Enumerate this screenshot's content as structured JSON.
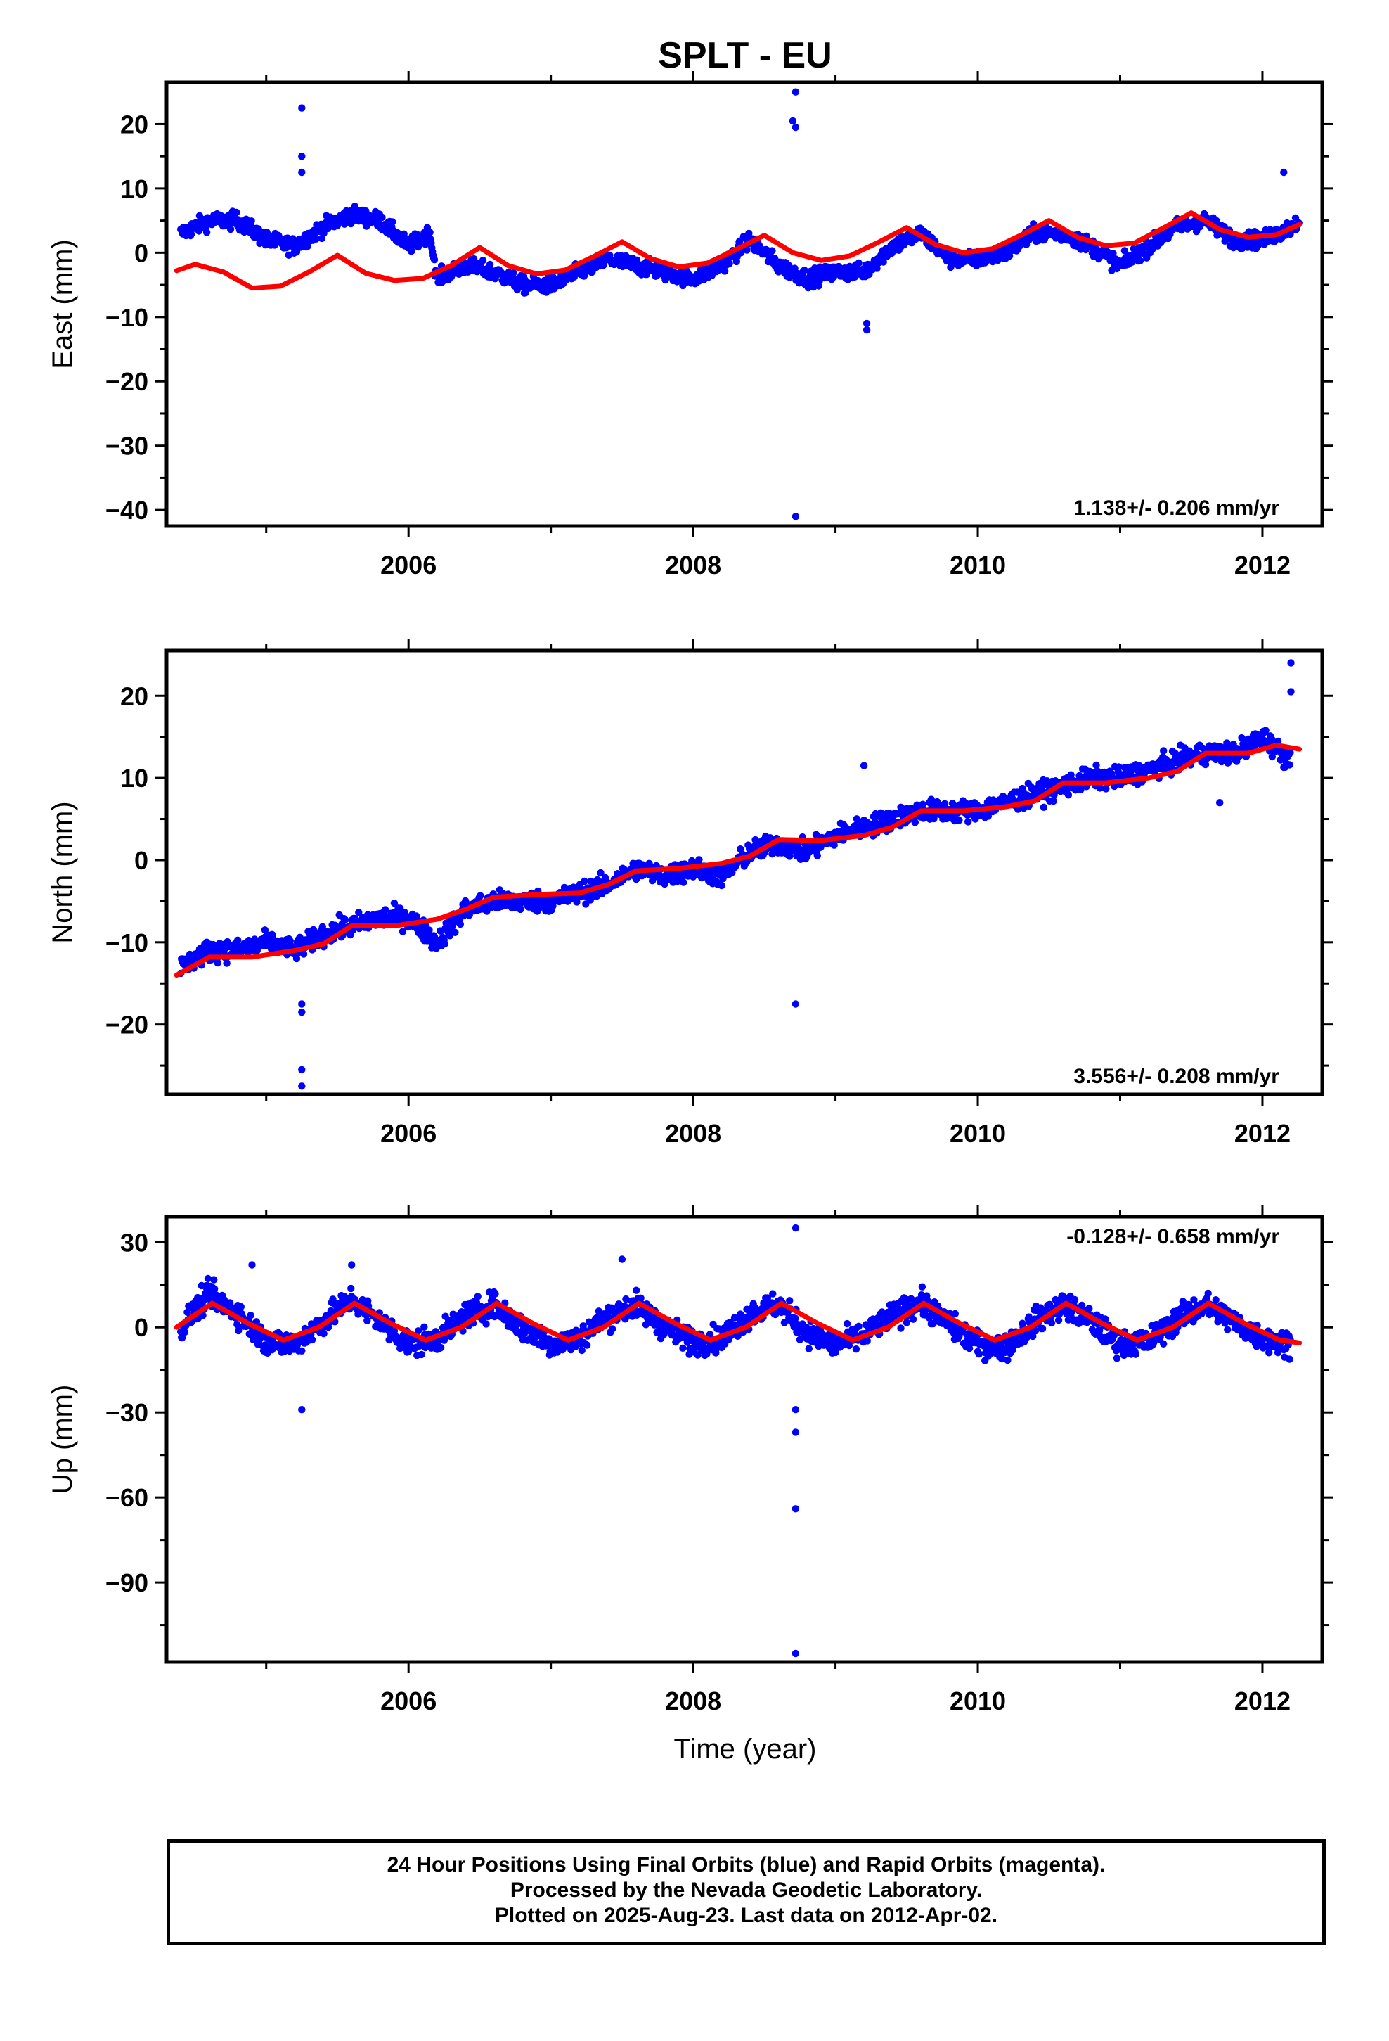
{
  "title": "SPLT - EU",
  "caption": [
    "24 Hour Positions Using Final Orbits (blue) and Rapid Orbits (magenta).",
    "Processed by the Nevada Geodetic Laboratory.",
    "Plotted on 2025-Aug-23. Last data on 2012-Apr-02."
  ],
  "colors": {
    "points": "#0000ff",
    "model": "#ff0000",
    "axes": "#000000"
  },
  "chart_data": [
    {
      "type": "scatter",
      "ylabel": "East (mm)",
      "xlabel": "",
      "rate_label": "1.138+/- 0.206 mm/yr",
      "xlim": [
        2004.3,
        2012.42
      ],
      "ylim": [
        -42.5,
        26.5
      ],
      "xticks": [
        2006,
        2008,
        2010,
        2012
      ],
      "yticks": [
        20,
        10,
        0,
        -10,
        -20,
        -30,
        -40
      ],
      "ytick_labels": [
        "20",
        "10",
        "0",
        "−10",
        "−20",
        "−30",
        "−40"
      ],
      "series": [
        {
          "kind": "points",
          "x": [
            2004.4,
            2004.6,
            2004.8,
            2005.0,
            2005.2,
            2005.4,
            2005.6,
            2005.8,
            2006.0,
            2006.15,
            2006.2,
            2006.4,
            2006.6,
            2006.8,
            2007.0,
            2007.2,
            2007.4,
            2007.6,
            2007.8,
            2008.0,
            2008.2,
            2008.4,
            2008.6,
            2008.8,
            2009.0,
            2009.2,
            2009.4,
            2009.6,
            2009.8,
            2010.0,
            2010.2,
            2010.4,
            2010.6,
            2010.8,
            2011.0,
            2011.2,
            2011.4,
            2011.6,
            2011.8,
            2012.0,
            2012.2,
            2012.26
          ],
          "y": [
            3,
            5,
            5,
            2,
            1,
            4,
            6,
            5,
            1,
            3,
            -4,
            -2,
            -3,
            -5,
            -5,
            -3,
            -1,
            -2,
            -3,
            -4,
            -2,
            2,
            -2,
            -4,
            -3,
            -3,
            1,
            3,
            -1,
            -1,
            0,
            3,
            3,
            1,
            -2,
            1,
            4,
            5,
            2,
            2,
            4,
            5
          ],
          "outliers": [
            [
              2005.25,
              22.5
            ],
            [
              2005.25,
              15
            ],
            [
              2005.25,
              12.5
            ],
            [
              2008.72,
              25
            ],
            [
              2008.7,
              20.5
            ],
            [
              2008.72,
              19.5
            ],
            [
              2009.22,
              -11
            ],
            [
              2009.22,
              -12
            ],
            [
              2008.72,
              -41
            ],
            [
              2012.15,
              12.5
            ]
          ]
        },
        {
          "kind": "line",
          "x": [
            2004.37,
            2004.5,
            2004.7,
            2004.9,
            2005.1,
            2005.3,
            2005.5,
            2005.7,
            2005.9,
            2006.1,
            2006.3,
            2006.5,
            2006.7,
            2006.9,
            2007.1,
            2007.3,
            2007.5,
            2007.7,
            2007.9,
            2008.1,
            2008.3,
            2008.5,
            2008.7,
            2008.9,
            2009.1,
            2009.3,
            2009.5,
            2009.7,
            2009.9,
            2010.1,
            2010.3,
            2010.5,
            2010.7,
            2010.9,
            2011.1,
            2011.3,
            2011.5,
            2011.7,
            2011.9,
            2012.1,
            2012.26
          ],
          "y": [
            -2.8,
            -1.8,
            -3.0,
            -5.5,
            -5.2,
            -3.0,
            -0.4,
            -3.2,
            -4.3,
            -4.0,
            -2.0,
            0.8,
            -2.0,
            -3.3,
            -2.7,
            -0.6,
            1.7,
            -0.9,
            -2.2,
            -1.6,
            0.5,
            2.7,
            0.0,
            -1.2,
            -0.5,
            1.6,
            3.9,
            1.3,
            0.0,
            0.6,
            2.7,
            5.0,
            2.4,
            1.1,
            1.5,
            3.8,
            6.2,
            3.6,
            2.4,
            2.8,
            4.4
          ]
        }
      ]
    },
    {
      "type": "scatter",
      "ylabel": "North (mm)",
      "xlabel": "",
      "rate_label": "3.556+/- 0.208 mm/yr",
      "xlim": [
        2004.3,
        2012.42
      ],
      "ylim": [
        -28.5,
        25.5
      ],
      "xticks": [
        2006,
        2008,
        2010,
        2012
      ],
      "yticks": [
        20,
        10,
        0,
        -10,
        -20
      ],
      "ytick_labels": [
        "20",
        "10",
        "0",
        "−10",
        "−20"
      ],
      "series": [
        {
          "kind": "points",
          "x": [
            2004.4,
            2004.6,
            2004.8,
            2005.0,
            2005.2,
            2005.4,
            2005.6,
            2005.8,
            2006.0,
            2006.2,
            2006.4,
            2006.6,
            2006.8,
            2007.0,
            2007.2,
            2007.4,
            2007.6,
            2007.8,
            2008.0,
            2008.2,
            2008.4,
            2008.6,
            2008.8,
            2009.0,
            2009.2,
            2009.4,
            2009.6,
            2009.8,
            2010.0,
            2010.2,
            2010.4,
            2010.6,
            2010.8,
            2011.0,
            2011.2,
            2011.4,
            2011.6,
            2011.8,
            2012.0,
            2012.2
          ],
          "y": [
            -13,
            -11,
            -11,
            -10,
            -11,
            -9,
            -8,
            -7,
            -7,
            -10,
            -6,
            -5,
            -5,
            -5,
            -4,
            -3,
            -1,
            -2,
            -1,
            -2,
            1,
            2,
            1,
            3,
            4,
            5,
            6,
            6,
            6,
            7,
            8,
            9,
            10,
            10,
            11,
            12,
            13,
            13,
            15,
            12
          ],
          "outliers": [
            [
              2005.25,
              -17.5
            ],
            [
              2005.25,
              -18.5
            ],
            [
              2005.25,
              -25.5
            ],
            [
              2005.25,
              -27.5
            ],
            [
              2008.72,
              -17.5
            ],
            [
              2009.2,
              11.5
            ],
            [
              2012.2,
              24
            ],
            [
              2012.2,
              20.5
            ],
            [
              2011.7,
              7
            ]
          ]
        },
        {
          "kind": "line",
          "x": [
            2004.37,
            2004.6,
            2004.9,
            2005.2,
            2005.4,
            2005.6,
            2005.9,
            2006.2,
            2006.4,
            2006.6,
            2006.9,
            2007.2,
            2007.4,
            2007.6,
            2007.9,
            2008.2,
            2008.4,
            2008.6,
            2008.9,
            2009.2,
            2009.4,
            2009.6,
            2009.9,
            2010.2,
            2010.4,
            2010.6,
            2010.9,
            2011.2,
            2011.4,
            2011.6,
            2011.9,
            2012.1,
            2012.26
          ],
          "y": [
            -14.0,
            -11.8,
            -11.8,
            -11.0,
            -10.2,
            -8.0,
            -8.0,
            -7.2,
            -6.0,
            -4.5,
            -4.2,
            -4.0,
            -3.0,
            -1.3,
            -1.0,
            -0.4,
            0.5,
            2.5,
            2.4,
            3.0,
            4.0,
            6.0,
            6.0,
            6.5,
            7.2,
            9.4,
            9.4,
            10.0,
            10.8,
            13.0,
            13.0,
            14.0,
            13.5
          ]
        }
      ]
    },
    {
      "type": "scatter",
      "ylabel": "Up (mm)",
      "xlabel": "Time (year)",
      "rate_label": "-0.128+/- 0.658 mm/yr",
      "xlim": [
        2004.3,
        2012.42
      ],
      "ylim": [
        -118,
        39
      ],
      "xticks": [
        2006,
        2008,
        2010,
        2012
      ],
      "yticks": [
        30,
        0,
        -30,
        -60,
        -90
      ],
      "ytick_labels": [
        "30",
        "0",
        "−30",
        "−60",
        "−90"
      ],
      "series": [
        {
          "kind": "points",
          "x": [
            2004.4,
            2004.6,
            2004.8,
            2005.0,
            2005.2,
            2005.4,
            2005.6,
            2005.8,
            2006.0,
            2006.2,
            2006.4,
            2006.6,
            2006.8,
            2007.0,
            2007.2,
            2007.4,
            2007.6,
            2007.8,
            2008.0,
            2008.2,
            2008.4,
            2008.6,
            2008.8,
            2009.0,
            2009.2,
            2009.4,
            2009.6,
            2009.8,
            2010.0,
            2010.2,
            2010.4,
            2010.6,
            2010.8,
            2011.0,
            2011.2,
            2011.4,
            2011.6,
            2011.8,
            2012.0,
            2012.2
          ],
          "y": [
            0,
            12,
            5,
            -5,
            -6,
            2,
            10,
            2,
            -6,
            -4,
            4,
            8,
            0,
            -6,
            -4,
            4,
            8,
            0,
            -5,
            -4,
            5,
            8,
            -2,
            -6,
            -3,
            4,
            9,
            1,
            -6,
            -7,
            2,
            8,
            2,
            -6,
            -5,
            3,
            8,
            2,
            -4,
            -6
          ],
          "outliers": [
            [
              2005.25,
              -29
            ],
            [
              2008.72,
              35
            ],
            [
              2008.72,
              -29
            ],
            [
              2008.72,
              -37
            ],
            [
              2008.72,
              -64
            ],
            [
              2008.72,
              -115
            ],
            [
              2004.9,
              22
            ],
            [
              2005.6,
              22
            ],
            [
              2007.5,
              24
            ]
          ]
        },
        {
          "kind": "line",
          "x": [
            2004.37,
            2004.62,
            2004.87,
            2005.12,
            2005.37,
            2005.62,
            2005.87,
            2006.12,
            2006.37,
            2006.62,
            2006.87,
            2007.12,
            2007.37,
            2007.62,
            2007.87,
            2008.12,
            2008.37,
            2008.62,
            2008.87,
            2009.12,
            2009.37,
            2009.62,
            2009.87,
            2010.12,
            2010.37,
            2010.62,
            2010.87,
            2011.12,
            2011.37,
            2011.62,
            2011.87,
            2012.12,
            2012.26
          ],
          "y": [
            0,
            8.5,
            1.5,
            -4.5,
            0,
            8.5,
            1.5,
            -4.5,
            0,
            8.5,
            1.5,
            -4.5,
            0,
            8.5,
            1.5,
            -4.5,
            0,
            8.5,
            1.5,
            -4.5,
            0,
            8.5,
            1.5,
            -4.5,
            0,
            8.5,
            1.5,
            -4.5,
            0,
            8.5,
            1.5,
            -4.5,
            -5.5
          ]
        }
      ]
    }
  ]
}
